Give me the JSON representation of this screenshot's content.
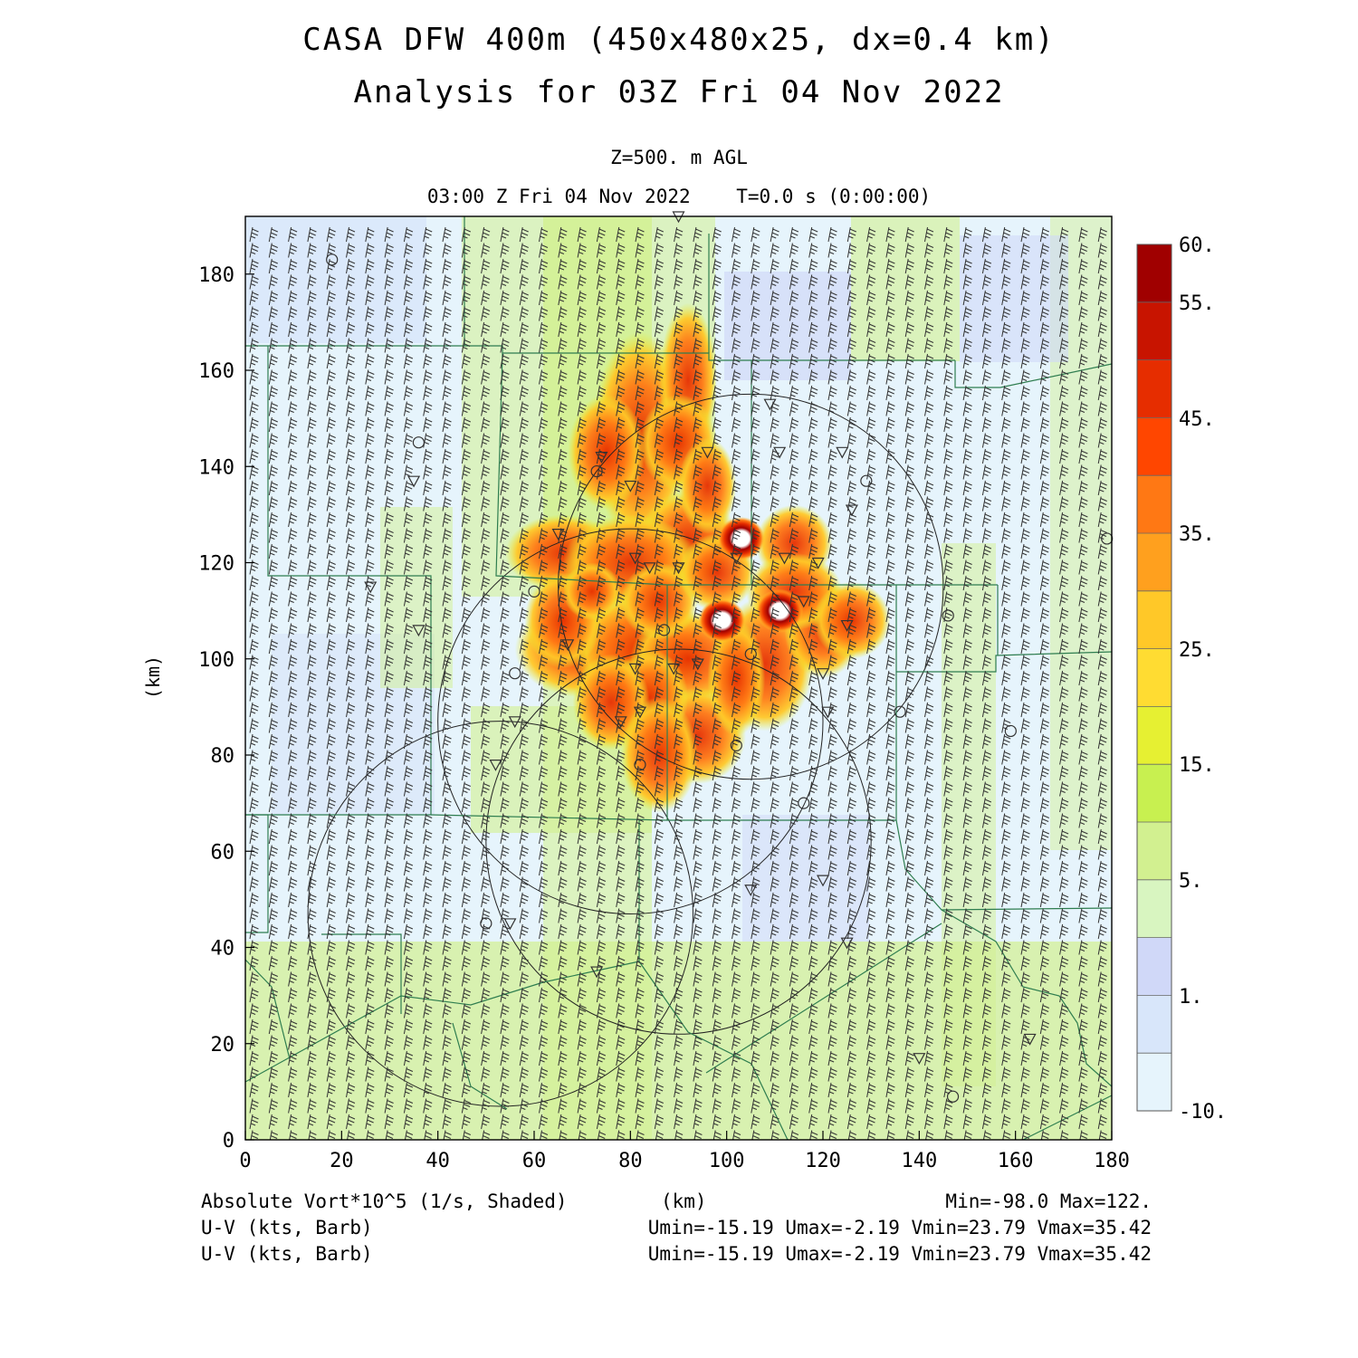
{
  "header": {
    "title_line1": "CASA DFW 400m (450x480x25, dx=0.4 km)",
    "title_line2": "Analysis for 03Z Fri 04 Nov 2022",
    "level": "Z=500. m AGL",
    "time_line": "03:00 Z Fri 04 Nov 2022    T=0.0 s (0:00:00)"
  },
  "axes": {
    "x_label": "(km)",
    "y_label": "(km)",
    "x_ticks": [
      "0",
      "20",
      "40",
      "60",
      "80",
      "100",
      "120",
      "140",
      "160",
      "180"
    ],
    "y_ticks": [
      "0",
      "20",
      "40",
      "60",
      "80",
      "100",
      "120",
      "140",
      "160",
      "180"
    ],
    "x_range": [
      0,
      180
    ],
    "y_range": [
      0,
      192
    ]
  },
  "colorbar": {
    "labels": [
      "60.",
      "55.",
      "45.",
      "35.",
      "25.",
      "15.",
      "5.",
      "1.",
      "-10."
    ],
    "colors": [
      "#a00000",
      "#c81400",
      "#e62d00",
      "#ff4600",
      "#ff7814",
      "#ffa01e",
      "#ffc828",
      "#ffdc32",
      "#e6f032",
      "#c8f050",
      "#d2f090",
      "#d8f5c0",
      "#d0d8f8",
      "#d8e6fa",
      "#e6f4fc"
    ]
  },
  "footer": {
    "field1": "Absolute Vort*10^5 (1/s, Shaded)",
    "units": "(km)",
    "minmax": "Min=-98.0 Max=122.",
    "field2": "U-V (kts, Barb)",
    "uv_stats": "Umin=-15.19 Umax=-2.19 Vmin=23.79 Vmax=35.42",
    "field3": "U-V (kts, Barb)",
    "uv_stats2": "Umin=-15.19 Umax=-2.19 Vmin=23.79 Vmax=35.42"
  },
  "map": {
    "radar_rings_km": [
      {
        "cx": 105,
        "cy": 115,
        "r": 40
      },
      {
        "cx": 80,
        "cy": 87,
        "r": 40
      },
      {
        "cx": 90,
        "cy": 62,
        "r": 40
      },
      {
        "cx": 53,
        "cy": 47,
        "r": 40
      }
    ],
    "vorticity_max_km": [
      {
        "x": 99,
        "y": 108
      },
      {
        "x": 111,
        "y": 110
      },
      {
        "x": 103,
        "y": 125
      }
    ]
  }
}
